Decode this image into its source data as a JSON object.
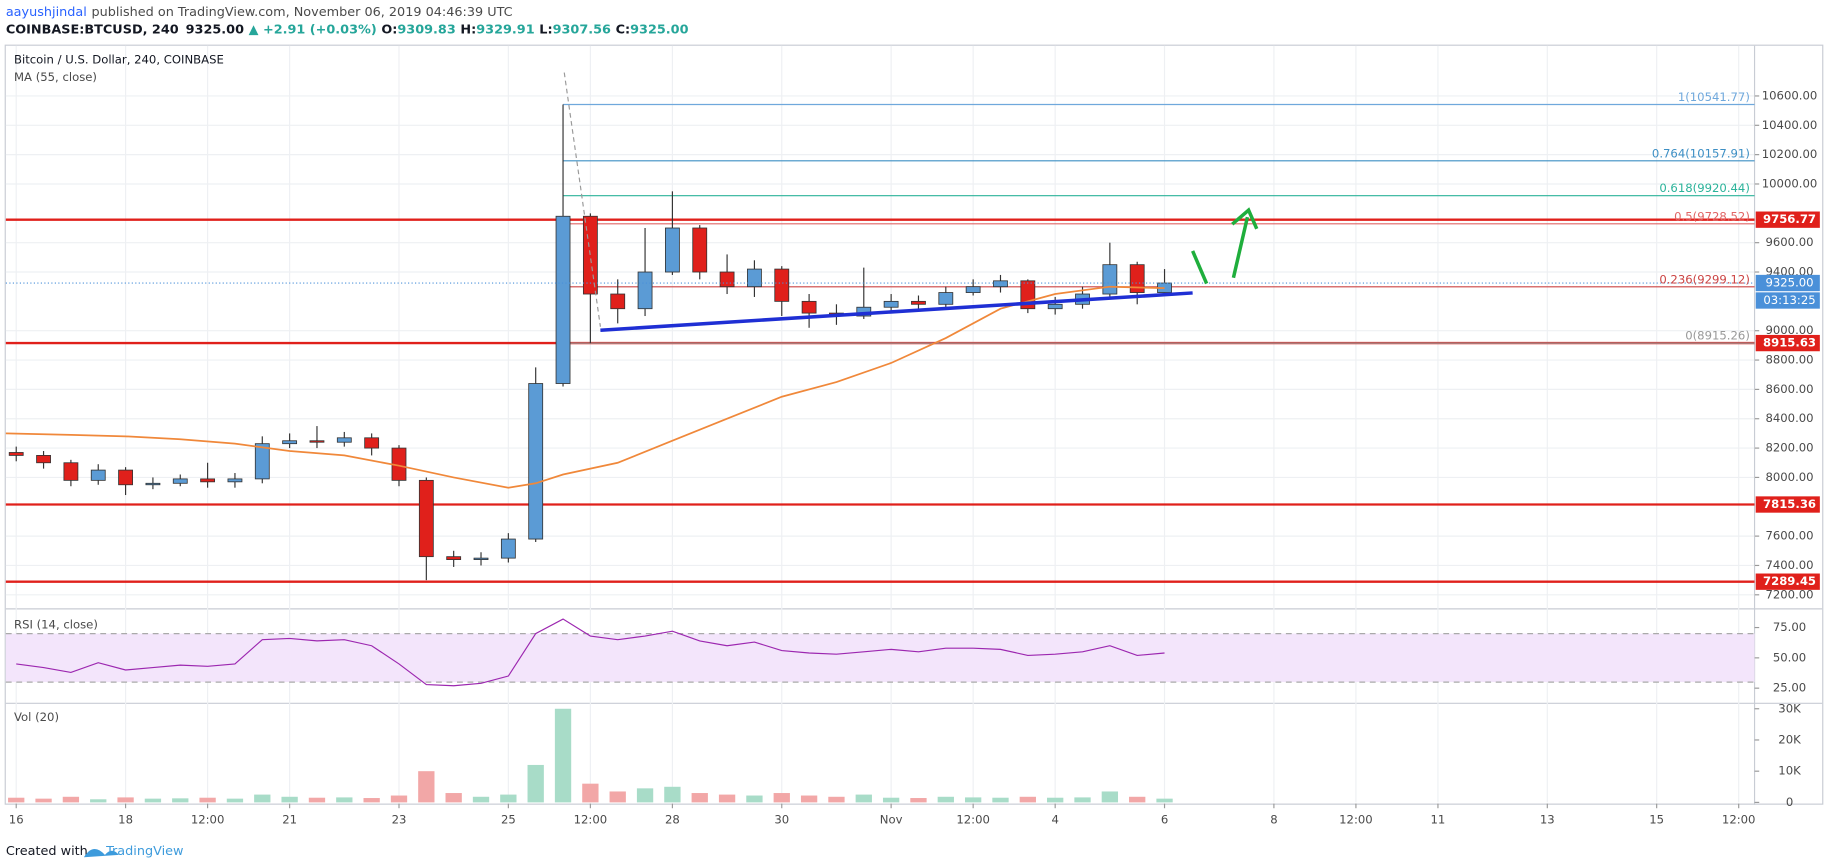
{
  "header": {
    "author": "aayushjindal",
    "published": "published on TradingView.com, November 06, 2019 04:46:39 UTC",
    "symbol": "COINBASE:BTCUSD, 240",
    "price": "9325.00",
    "change": "▲ +2.91 (+0.03%)",
    "ohlc": [
      {
        "key": "O:",
        "value": "9309.83"
      },
      {
        "key": "H:",
        "value": "9329.91"
      },
      {
        "key": "L:",
        "value": "9307.56"
      },
      {
        "key": "C:",
        "value": "9325.00"
      }
    ]
  },
  "footer": {
    "created": "Created with",
    "brand": "TradingView"
  },
  "chart_data": [
    {
      "type": "candlestick",
      "title": "Bitcoin / U.S. Dollar, 240, COINBASE",
      "up_color": "#5b9bd5",
      "down_color": "#e0201b",
      "grid": true,
      "xlim": [
        -0.19,
        31.79
      ],
      "ylim": [
        7120,
        10934
      ],
      "yticks": [
        {
          "value": 7200,
          "label": "7200.00"
        },
        {
          "value": 7400,
          "label": "7400.00"
        },
        {
          "value": 7600,
          "label": "7600.00"
        },
        {
          "value": 8000,
          "label": "8000.00"
        },
        {
          "value": 8200,
          "label": "8200.00"
        },
        {
          "value": 8400,
          "label": "8400.00"
        },
        {
          "value": 8600,
          "label": "8600.00"
        },
        {
          "value": 8800,
          "label": "8800.00"
        },
        {
          "value": 9000,
          "label": "9000.00"
        },
        {
          "value": 9400,
          "label": "9400.00"
        },
        {
          "value": 9600,
          "label": "9600.00"
        },
        {
          "value": 10000,
          "label": "10000.00"
        },
        {
          "value": 10200,
          "label": "10200.00"
        },
        {
          "value": 10400,
          "label": "10400.00"
        },
        {
          "value": 10600,
          "label": "10600.00"
        }
      ],
      "x": [
        0,
        0.5,
        1,
        1.5,
        2,
        2.5,
        3,
        3.5,
        4,
        4.5,
        5,
        5.5,
        6,
        6.5,
        7,
        7.5,
        8,
        8.5,
        9,
        9.5,
        10,
        10.5,
        11,
        11.5,
        12,
        12.5,
        13,
        13.5,
        14,
        14.5,
        15,
        15.5,
        16,
        16.5,
        17,
        17.5,
        18,
        18.5,
        19,
        19.5,
        20,
        20.5,
        21
      ],
      "open": [
        8170,
        8150,
        8100,
        7980,
        8050,
        7950,
        7960,
        7990,
        7970,
        7990,
        8230,
        8250,
        8240,
        8270,
        8200,
        7980,
        7460,
        7440,
        7450,
        7580,
        8640,
        9780,
        9250,
        9150,
        9400,
        9700,
        9400,
        9300,
        9420,
        9200,
        9120,
        9100,
        9160,
        9200,
        9180,
        9260,
        9300,
        9340,
        9150,
        9180,
        9250,
        9450,
        9260
      ],
      "high": [
        8210,
        8180,
        8120,
        8090,
        8070,
        8000,
        8020,
        8100,
        8030,
        8280,
        8300,
        8350,
        8310,
        8300,
        8220,
        8000,
        7500,
        7490,
        7620,
        8750,
        10541.77,
        9800,
        9350,
        9700,
        9950,
        9720,
        9520,
        9480,
        9440,
        9250,
        9180,
        9430,
        9250,
        9240,
        9300,
        9350,
        9380,
        9350,
        9230,
        9300,
        9600,
        9470,
        9420
      ],
      "low": [
        8110,
        8060,
        7940,
        7950,
        7880,
        7920,
        7940,
        7930,
        7930,
        7960,
        8200,
        8200,
        8210,
        8150,
        7940,
        7300,
        7390,
        7400,
        7420,
        7560,
        8620,
        8915.26,
        9050,
        9100,
        9380,
        9350,
        9250,
        9230,
        9100,
        9020,
        9040,
        9080,
        9120,
        9130,
        9150,
        9240,
        9260,
        9120,
        9110,
        9150,
        9230,
        9180,
        9240
      ],
      "close": [
        8150,
        8100,
        7980,
        8050,
        7950,
        7960,
        7990,
        7970,
        7990,
        8230,
        8250,
        8240,
        8270,
        8200,
        7980,
        7460,
        7440,
        7450,
        7580,
        8640,
        9780,
        9250,
        9150,
        9400,
        9700,
        9400,
        9300,
        9420,
        9200,
        9120,
        9100,
        9160,
        9200,
        9180,
        9260,
        9300,
        9340,
        9150,
        9180,
        9250,
        9450,
        9260,
        9325
      ],
      "series": [
        {
          "name": "MA (55, close)",
          "color": "#f0883a",
          "x": [
            -0.19,
            1,
            2,
            3,
            4,
            5,
            6,
            7,
            8,
            9,
            9.5,
            10,
            11,
            12,
            13,
            14,
            15,
            16,
            17,
            18,
            19,
            20,
            21
          ],
          "values": [
            8300,
            8290,
            8280,
            8260,
            8230,
            8180,
            8150,
            8080,
            8000,
            7930,
            7960,
            8020,
            8100,
            8250,
            8400,
            8550,
            8650,
            8780,
            8950,
            9150,
            9250,
            9300,
            9290
          ]
        }
      ],
      "levels": [
        9756.77,
        8915.63,
        7815.36,
        7289.45
      ],
      "level_color": "#e0201b",
      "fib_start": 10,
      "fib": [
        {
          "ratio": 1,
          "value": 10541.77,
          "label": "1(10541.77)",
          "color": "#6fa8dc"
        },
        {
          "ratio": 0.764,
          "value": 10157.91,
          "label": "0.764(10157.91)",
          "color": "#3d8fc4"
        },
        {
          "ratio": 0.618,
          "value": 9920.44,
          "label": "0.618(9920.44)",
          "color": "#2bb39a"
        },
        {
          "ratio": 0.5,
          "value": 9728.52,
          "label": "0.5(9728.52)",
          "color": "#e06666"
        },
        {
          "ratio": 0.236,
          "value": 9299.12,
          "label": "0.236(9299.12)",
          "color": "#cc4444"
        },
        {
          "ratio": 0,
          "value": 8915.26,
          "label": "0(8915.26)",
          "color": "#999999"
        }
      ],
      "last": {
        "value": 9325,
        "label": "9325.00",
        "countdown": "03:13:25",
        "color": "#4a90d9"
      }
    },
    {
      "type": "line",
      "title": "RSI (14, close)",
      "color": "#9c27b0",
      "band": [
        30,
        70
      ],
      "band_color": "#f3e5fb",
      "ylim": [
        15.4,
        85.6
      ],
      "yticks": [
        {
          "value": 25,
          "label": "25.00"
        },
        {
          "value": 50,
          "label": "50.00"
        },
        {
          "value": 75,
          "label": "75.00"
        }
      ],
      "values": [
        45,
        42,
        38,
        46,
        40,
        42,
        44,
        43,
        45,
        65,
        66,
        64,
        65,
        60,
        45,
        28,
        27,
        29,
        35,
        70,
        82,
        68,
        65,
        68,
        72,
        64,
        60,
        63,
        56,
        54,
        53,
        55,
        57,
        55,
        58,
        58,
        57,
        52,
        53,
        55,
        60,
        52,
        54
      ]
    },
    {
      "type": "bar",
      "title": "Vol (20)",
      "up_color": "#a8dcc8",
      "down_color": "#f2a7a7",
      "ylim": [
        0,
        31000
      ],
      "yticks": [
        0,
        {
          "value": 10000,
          "label": "10K"
        },
        {
          "value": 20000,
          "label": "20K"
        },
        {
          "value": 30000,
          "label": "30K"
        }
      ],
      "values": [
        1500,
        1200,
        1800,
        1000,
        1600,
        1200,
        1300,
        1500,
        1200,
        2500,
        1800,
        1500,
        1600,
        1400,
        2200,
        10000,
        3000,
        1800,
        2500,
        12000,
        30000,
        6000,
        3500,
        4500,
        5000,
        3000,
        2500,
        2200,
        3000,
        2200,
        1800,
        2500,
        1500,
        1400,
        1800,
        1600,
        1500,
        1800,
        1500,
        1600,
        3500,
        1800,
        1200
      ],
      "xticks": [
        {
          "value": 0,
          "label": "16"
        },
        {
          "value": 2,
          "label": "18"
        },
        {
          "value": 3.5,
          "label": "12:00"
        },
        {
          "value": 5,
          "label": "21"
        },
        {
          "value": 7,
          "label": "23"
        },
        {
          "value": 9,
          "label": "25"
        },
        {
          "value": 10.5,
          "label": "12:00"
        },
        {
          "value": 12,
          "label": "28"
        },
        {
          "value": 14,
          "label": "30"
        },
        {
          "value": 16,
          "label": "Nov"
        },
        {
          "value": 17.5,
          "label": "12:00"
        },
        {
          "value": 19,
          "label": "4"
        },
        {
          "value": 21,
          "label": "6"
        },
        {
          "value": 23,
          "label": "8"
        },
        {
          "value": 24.5,
          "label": "12:00"
        },
        {
          "value": 26,
          "label": "11"
        },
        {
          "value": 28,
          "label": "13"
        },
        {
          "value": 30,
          "label": "15"
        },
        {
          "value": 31.5,
          "label": "12:00"
        }
      ]
    }
  ]
}
